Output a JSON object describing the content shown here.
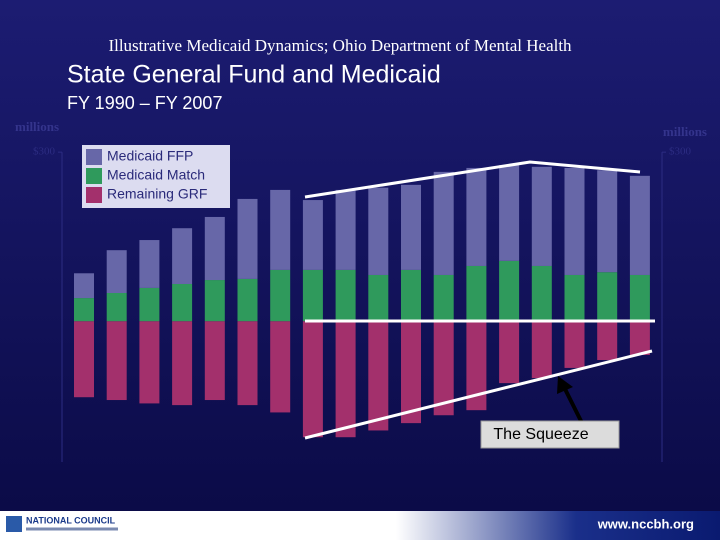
{
  "chart_data": {
    "type": "bar",
    "stacked": true,
    "supertitle": "Illustrative Medicaid Dynamics; Ohio Department of Mental Health",
    "title": "State General Fund and Medicaid",
    "subtitle": "FY 1990 – FY 2007",
    "y_label": "millions",
    "y2_label": "millions",
    "categories": [
      null,
      null,
      null,
      null,
      null,
      null,
      null,
      null,
      null,
      null,
      null,
      null,
      null,
      null,
      null,
      null,
      null,
      null
    ],
    "series": [
      {
        "name": "Medicaid FFP",
        "color": "#6767a8",
        "values": [
          44,
          76,
          85,
          99,
          112,
          142,
          142,
          124,
          142,
          155,
          151,
          183,
          174,
          170,
          176,
          190,
          181,
          176
        ]
      },
      {
        "name": "Medicaid Match",
        "color": "#2f9a5c",
        "values": [
          41,
          50,
          59,
          66,
          73,
          75,
          91,
          91,
          91,
          82,
          91,
          82,
          98,
          107,
          98,
          82,
          87,
          82
        ]
      },
      {
        "name": "Remaining GRF",
        "color": "#a3306c",
        "values": [
          -135,
          -140,
          -146,
          -149,
          -140,
          -149,
          -162,
          -206,
          -206,
          -194,
          -181,
          -167,
          -158,
          -110,
          -101,
          -83,
          -69,
          -60
        ]
      }
    ],
    "ylim": [
      -250,
      350
    ],
    "yticks": [
      {
        "value": 300,
        "label": "$300"
      }
    ],
    "y2lim": [
      -250,
      350
    ],
    "y2ticks": [
      {
        "value": 300,
        "label": "$300"
      }
    ],
    "legend": "top-left",
    "annotations": [
      "The Squeeze"
    ],
    "footer": {
      "logo": "NATIONAL COUNCIL",
      "url": "www.nccbh.org"
    }
  }
}
